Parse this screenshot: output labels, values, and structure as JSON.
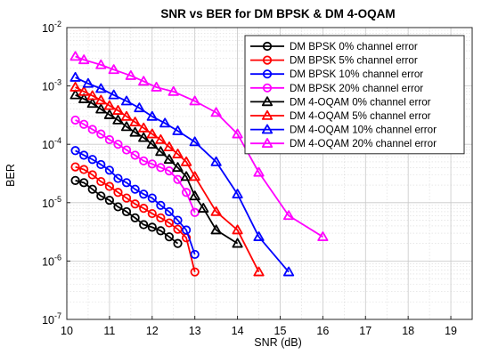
{
  "chart_data": {
    "type": "line",
    "title": "SNR vs BER for DM BPSK & DM 4-OQAM",
    "xlabel": "SNR (dB)",
    "ylabel": "BER",
    "xscale": "linear",
    "yscale": "log",
    "xlim": [
      10,
      19.5
    ],
    "ylim": [
      1e-07,
      0.01
    ],
    "xticks": [
      10,
      11,
      12,
      13,
      14,
      15,
      16,
      17,
      18,
      19
    ],
    "xtick_labels": [
      "10",
      "11",
      "12",
      "13",
      "14",
      "15",
      "16",
      "17",
      "18",
      "19"
    ],
    "yticks": [
      1e-07,
      1e-06,
      1e-05,
      0.0001,
      0.001,
      0.01
    ],
    "ytick_labels": [
      {
        "base": "10",
        "exp": "-7"
      },
      {
        "base": "10",
        "exp": "-6"
      },
      {
        "base": "10",
        "exp": "-5"
      },
      {
        "base": "10",
        "exp": "-4"
      },
      {
        "base": "10",
        "exp": "-3"
      },
      {
        "base": "10",
        "exp": "-2"
      }
    ],
    "grid": true,
    "minor_grid": true,
    "legend_position": "top-right",
    "series": [
      {
        "name": "DM BPSK 0% channel error",
        "color": "#000000",
        "marker": "circle",
        "x": [
          10.2,
          10.4,
          10.6,
          10.8,
          11.0,
          11.2,
          11.4,
          11.6,
          11.8,
          12.0,
          12.2,
          12.4,
          12.6
        ],
        "y": [
          2.4e-05,
          2.2e-05,
          1.7e-05,
          1.3e-05,
          1.1e-05,
          8.5e-06,
          7e-06,
          5.5e-06,
          4.2e-06,
          3.8e-06,
          3.3e-06,
          2.6e-06,
          2e-06
        ]
      },
      {
        "name": "DM BPSK 5% channel error",
        "color": "#ff0000",
        "marker": "circle",
        "x": [
          10.2,
          10.4,
          10.6,
          10.8,
          11.0,
          11.2,
          11.4,
          11.6,
          11.8,
          12.0,
          12.2,
          12.4,
          12.6,
          12.8,
          13.0
        ],
        "y": [
          4.1e-05,
          3.7e-05,
          3e-05,
          2.3e-05,
          1.9e-05,
          1.5e-05,
          1.2e-05,
          9.5e-06,
          8e-06,
          6.5e-06,
          5.5e-06,
          4.5e-06,
          3.5e-06,
          2.5e-06,
          6.5e-07
        ]
      },
      {
        "name": "DM BPSK 10% channel error",
        "color": "#0000ff",
        "marker": "circle",
        "x": [
          10.2,
          10.4,
          10.6,
          10.8,
          11.0,
          11.2,
          11.4,
          11.6,
          11.8,
          12.0,
          12.2,
          12.4,
          12.6,
          12.8,
          13.0
        ],
        "y": [
          7.8e-05,
          6.5e-05,
          5.5e-05,
          4.5e-05,
          3.6e-05,
          2.6e-05,
          2.2e-05,
          1.7e-05,
          1.4e-05,
          1.2e-05,
          9e-06,
          7e-06,
          5e-06,
          3.4e-06,
          1.3e-06
        ]
      },
      {
        "name": "DM BPSK 20% channel error",
        "color": "#ff00ff",
        "marker": "circle",
        "x": [
          10.2,
          10.4,
          10.6,
          10.8,
          11.0,
          11.2,
          11.4,
          11.6,
          11.8,
          12.0,
          12.2,
          12.4,
          12.6,
          12.8,
          13.0
        ],
        "y": [
          0.00026,
          0.00022,
          0.00018,
          0.00015,
          0.00012,
          0.0001,
          8e-05,
          6.5e-05,
          5.2e-05,
          4.6e-05,
          4e-05,
          3.5e-05,
          2.5e-05,
          1.5e-05,
          6.8e-06
        ]
      },
      {
        "name": "DM 4-OQAM 0% channel error",
        "color": "#000000",
        "marker": "triangle",
        "x": [
          10.2,
          10.4,
          10.6,
          10.8,
          11.0,
          11.2,
          11.4,
          11.6,
          11.8,
          12.0,
          12.2,
          12.4,
          12.6,
          12.8,
          13.0,
          13.2,
          13.5,
          14.0
        ],
        "y": [
          0.0007,
          0.0006,
          0.0005,
          0.0004,
          0.00032,
          0.00026,
          0.0002,
          0.00016,
          0.00013,
          0.0001,
          7.5e-05,
          5.5e-05,
          4e-05,
          2.8e-05,
          1.3e-05,
          8e-06,
          3.4e-06,
          2e-06
        ]
      },
      {
        "name": "DM 4-OQAM 5% channel error",
        "color": "#ff0000",
        "marker": "triangle",
        "x": [
          10.2,
          10.4,
          10.6,
          10.8,
          11.0,
          11.2,
          11.4,
          11.6,
          11.8,
          12.0,
          12.2,
          12.4,
          12.6,
          12.8,
          13.0,
          13.5,
          14.0,
          14.5
        ],
        "y": [
          0.00095,
          0.0008,
          0.00068,
          0.00057,
          0.00046,
          0.00038,
          0.0003,
          0.00024,
          0.00019,
          0.00015,
          0.00012,
          9e-05,
          6.8e-05,
          5e-05,
          2.8e-05,
          7e-06,
          3.4e-06,
          6.5e-07
        ]
      },
      {
        "name": "DM 4-OQAM 10% channel error",
        "color": "#0000ff",
        "marker": "triangle",
        "x": [
          10.2,
          10.5,
          10.8,
          11.1,
          11.4,
          11.7,
          12.0,
          12.3,
          12.6,
          13.0,
          13.5,
          14.0,
          14.5,
          15.2
        ],
        "y": [
          0.0014,
          0.0011,
          0.0009,
          0.0007,
          0.00055,
          0.00042,
          0.0003,
          0.00023,
          0.00017,
          0.00011,
          5e-05,
          1.4e-05,
          2.6e-06,
          6.5e-07
        ]
      },
      {
        "name": "DM 4-OQAM 20% channel error",
        "color": "#ff00ff",
        "marker": "triangle",
        "x": [
          10.2,
          10.4,
          10.8,
          11.1,
          11.5,
          11.8,
          12.1,
          12.5,
          13.0,
          13.5,
          14.0,
          14.5,
          15.2,
          16.0
        ],
        "y": [
          0.0032,
          0.0028,
          0.0023,
          0.0019,
          0.0015,
          0.0012,
          0.00095,
          0.0008,
          0.00055,
          0.00035,
          0.00015,
          3.3e-05,
          6e-06,
          2.6e-06
        ]
      }
    ]
  }
}
